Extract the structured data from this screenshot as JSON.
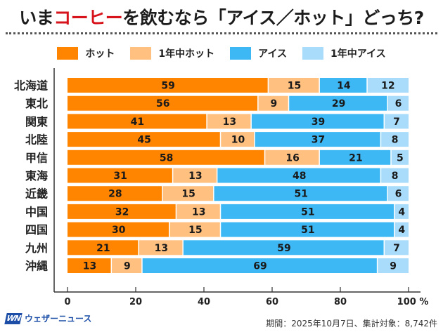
{
  "title": {
    "prefix": "いま",
    "accent": "コーヒー",
    "suffix": "を飲むなら「アイス／ホット」どっち?"
  },
  "colors": {
    "hot": "#FF8400",
    "hot_all_year": "#FFC080",
    "ice": "#3DB8F5",
    "ice_all_year": "#A8DCFA",
    "title_accent": "#D7141C",
    "brand": "#1C4EA8"
  },
  "chart_data": {
    "type": "bar",
    "orientation": "horizontal-stacked-100",
    "title": "いまコーヒーを飲むなら「アイス／ホット」どっち?",
    "xlabel": "",
    "ylabel": "",
    "xlim": [
      0,
      100
    ],
    "x_ticks": [
      "0",
      "20",
      "40",
      "60",
      "80",
      "100 %"
    ],
    "x_tick_values": [
      0,
      20,
      40,
      60,
      80,
      100
    ],
    "grid": false,
    "legend_position": "top",
    "categories": [
      "北海道",
      "東北",
      "関東",
      "北陸",
      "甲信",
      "東海",
      "近畿",
      "中国",
      "四国",
      "九州",
      "沖縄"
    ],
    "series": [
      {
        "name": "ホット",
        "color": "#FF8400",
        "values": [
          59,
          56,
          41,
          45,
          58,
          31,
          28,
          32,
          30,
          21,
          13
        ]
      },
      {
        "name": "1年中ホット",
        "color": "#FFC080",
        "values": [
          15,
          9,
          13,
          10,
          16,
          13,
          15,
          13,
          15,
          13,
          9
        ]
      },
      {
        "name": "アイス",
        "color": "#3DB8F5",
        "values": [
          14,
          29,
          39,
          37,
          21,
          48,
          51,
          51,
          51,
          59,
          69
        ]
      },
      {
        "name": "1年中アイス",
        "color": "#A8DCFA",
        "values": [
          12,
          6,
          7,
          8,
          5,
          8,
          6,
          4,
          4,
          7,
          9
        ]
      }
    ]
  },
  "footer": {
    "brand_mark": "WN",
    "brand_name": "ウェザーニュース",
    "note": "期間：2025年10月7日、集計対象：8,742件"
  }
}
